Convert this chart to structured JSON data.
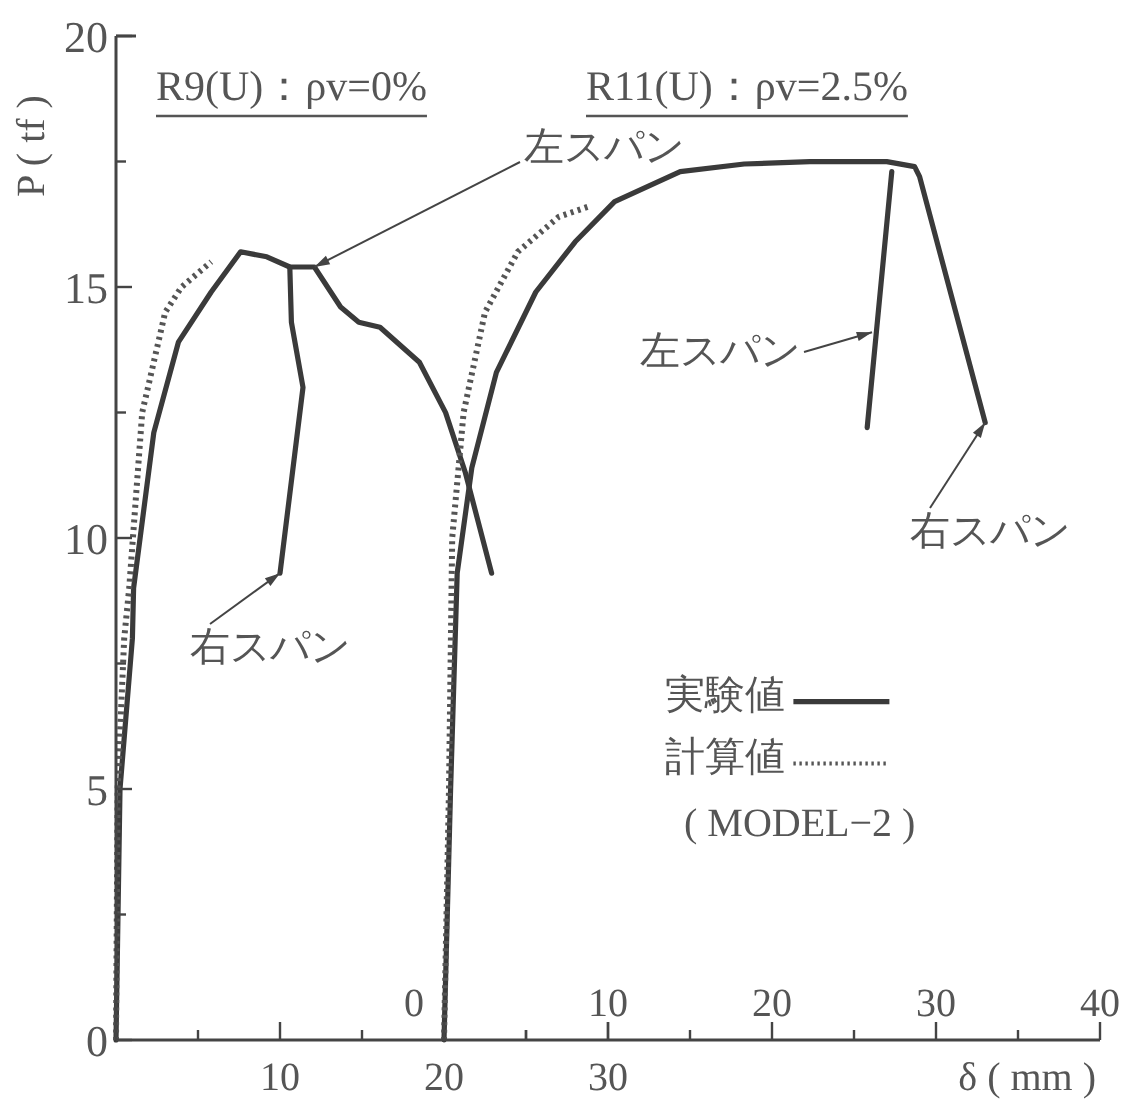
{
  "chart_data": {
    "type": "line",
    "xlabel": "δ ( mm )",
    "ylabel": "P ( tf )",
    "xlim": [
      0,
      60
    ],
    "ylim": [
      0,
      20
    ],
    "xticks": [
      {
        "value": 5,
        "label": null
      },
      10,
      {
        "value": 15,
        "label": null
      },
      20,
      {
        "value": 25,
        "label": null
      },
      30
    ],
    "x2lim": [
      -20,
      40
    ],
    "x2ticks": [
      0,
      {
        "value": 5,
        "label": null
      },
      10,
      {
        "value": 15,
        "label": null
      },
      20,
      {
        "value": 25,
        "label": null
      },
      30,
      {
        "value": 35,
        "label": null
      },
      40
    ],
    "yticks": [
      0,
      {
        "value": 2.5,
        "label": null
      },
      5,
      {
        "value": 7.5,
        "label": null
      },
      10,
      {
        "value": 12.5,
        "label": null
      },
      15,
      {
        "value": 17.5,
        "label": null
      },
      20
    ],
    "legend": "right",
    "grid": false,
    "series": [
      {
        "name": "実験値",
        "color": "#3a3a3a",
        "line_style": "solid",
        "x": [
          0,
          0.25,
          1.0,
          1.07,
          2.3,
          3.8,
          5.8,
          7.6,
          9.2,
          10.6,
          12.1,
          13.7,
          14.8,
          16.1,
          18.5,
          20.1,
          21.3,
          22.9
        ],
        "values": [
          0,
          5,
          8,
          9,
          12.1,
          13.9,
          14.9,
          15.7,
          15.6,
          15.4,
          15.4,
          14.6,
          14.3,
          14.2,
          13.5,
          12.5,
          11.3,
          9.3
        ]
      },
      {
        "color": "#3a3a3a",
        "line_style": "solid",
        "x": [
          10.6,
          10.7,
          11.4,
          10.0
        ],
        "values": [
          15.4,
          14.3,
          13.0,
          9.3
        ]
      },
      {
        "name": "計算値",
        "color": "#555555",
        "line_style": "dotted",
        "x": [
          0,
          0.1,
          0.5,
          0.8,
          1.6,
          3.0,
          4.0,
          5.8
        ],
        "values": [
          0,
          5,
          8,
          9,
          12.5,
          14.5,
          15,
          15.5
        ]
      },
      {
        "color": "#3a3a3a",
        "line_style": "solid",
        "x": [
          20,
          20.4,
          20.8,
          21.7,
          23.2,
          25.6,
          28.0,
          30.4,
          34.4,
          38.3,
          42.3,
          47.0,
          48.7,
          49.0,
          53.0
        ],
        "values": [
          0,
          5,
          9.3,
          11.4,
          13.3,
          14.9,
          15.9,
          16.7,
          17.3,
          17.45,
          17.5,
          17.5,
          17.4,
          17.2,
          12.3
        ]
      },
      {
        "color": "#3a3a3a",
        "line_style": "solid",
        "x": [
          47.3,
          45.8
        ],
        "values": [
          17.3,
          12.2
        ]
      },
      {
        "color": "#555555",
        "line_style": "dotted",
        "x": [
          20,
          20.3,
          20.5,
          21.2,
          22.5,
          24.5,
          27,
          28.8
        ],
        "values": [
          0,
          5,
          10,
          12.5,
          14.5,
          15.7,
          16.4,
          16.6
        ]
      }
    ],
    "annotations": [
      "R9(U)：ρv=0%",
      "R11(U)：ρv=2.5%",
      {
        "text": "左スパン",
        "x": 12.1,
        "y": 15.4
      },
      {
        "text": "右スパン",
        "x": 10.0,
        "y": 9.3
      },
      {
        "text": "左スパン",
        "x": 46.1,
        "y": 14.1
      },
      {
        "text": "右スパン",
        "x": 53.0,
        "y": 12.3
      },
      "( MODEL−2 )"
    ]
  }
}
